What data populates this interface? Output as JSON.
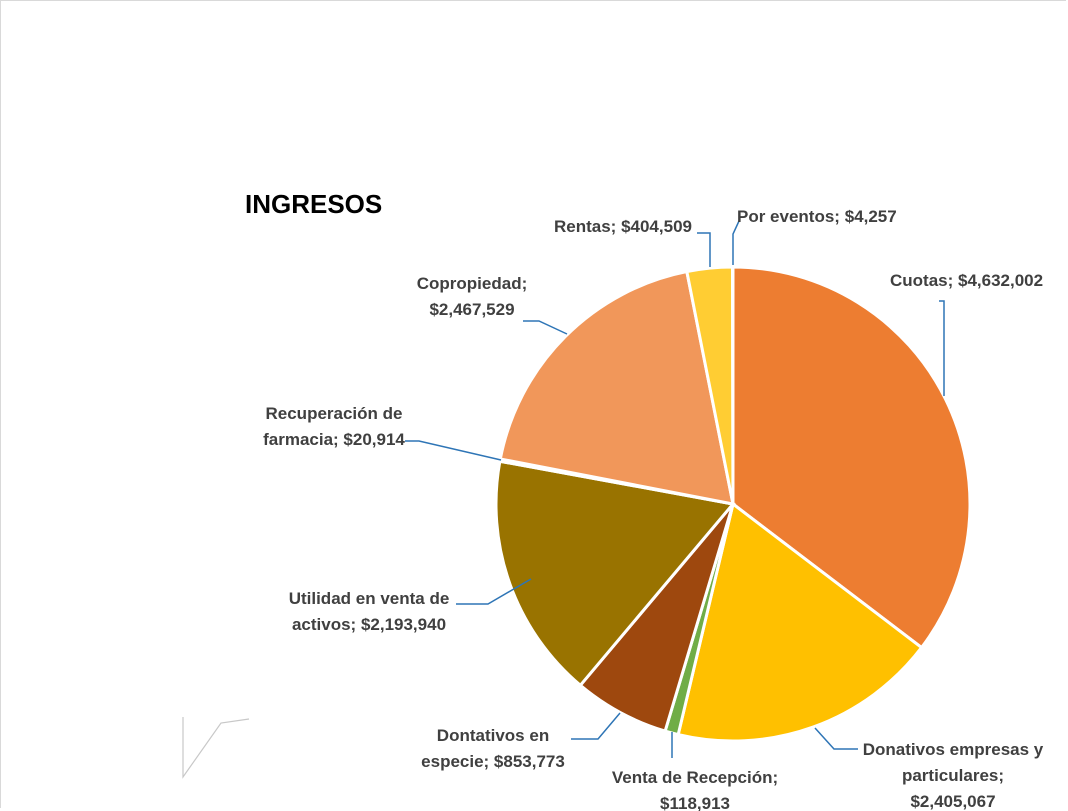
{
  "chart_data": {
    "type": "pie",
    "title": "INGRESOS",
    "categories": [
      "Cuotas",
      "Donativos empresas y particulares",
      "Venta de Recepción",
      "Dontativos en especie",
      "Utilidad en venta de activos",
      "Recuperación de farmacia",
      "Copropiedad",
      "Rentas",
      "Por eventos"
    ],
    "values": [
      4632002,
      2405067,
      118913,
      853773,
      2193940,
      20914,
      2467529,
      404509,
      4257
    ],
    "colors": [
      "#ED7D31",
      "#FFC000",
      "#70AD47",
      "#9E480E",
      "#997300",
      "#43682B",
      "#F1975A",
      "#FFCD33",
      "#A5A5A5"
    ],
    "labels": [
      [
        "Cuotas;  $4,632,002"
      ],
      [
        "Donativos empresas y",
        "particulares;",
        "$2,405,067"
      ],
      [
        "Venta de Recepción;",
        "$118,913"
      ],
      [
        "Dontativos en",
        "especie;  $853,773"
      ],
      [
        "Utilidad en venta de",
        "activos;  $2,193,940"
      ],
      [
        "Recuperación de",
        "farmacia;  $20,914"
      ],
      [
        "Copropiedad;",
        "$2,467,529"
      ],
      [
        "Rentas;  $404,509"
      ],
      [
        "Por eventos;  $4,257"
      ]
    ],
    "leader_color": "#2E75B6",
    "legend": "none",
    "label_color": "#404040"
  }
}
